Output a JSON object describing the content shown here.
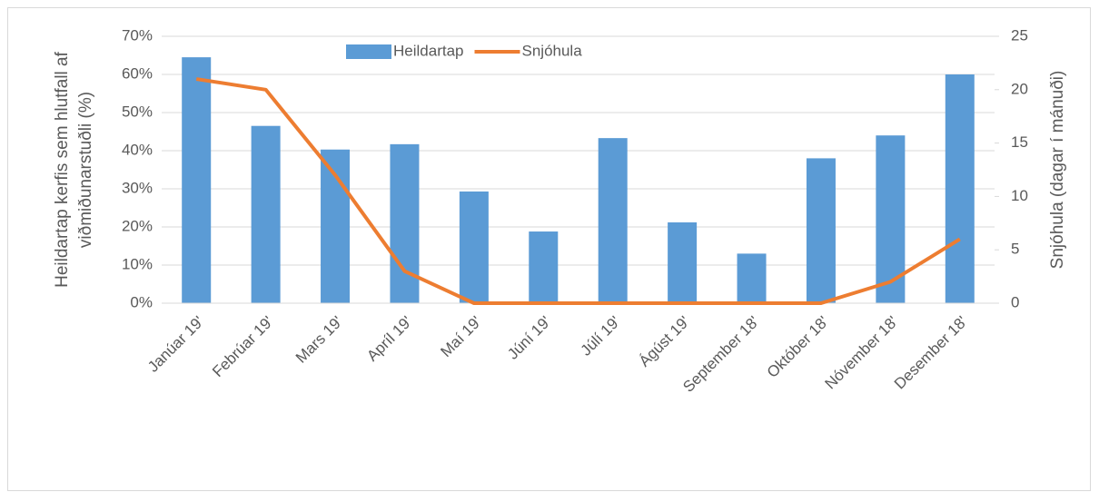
{
  "chart_data": {
    "type": "bar",
    "categories": [
      "Janúar 19'",
      "Febrúar 19'",
      "Mars 19'",
      "Apríl 19'",
      "Maí 19'",
      "Júní 19'",
      "Júlí 19'",
      "Ágúst 19'",
      "September 18'",
      "Október 18'",
      "Nóvember 18'",
      "Desember 18'"
    ],
    "series": [
      {
        "name": "Heildartap",
        "type": "bar",
        "color": "#5b9bd5",
        "values": [
          64.5,
          46.5,
          40.3,
          41.7,
          29.3,
          18.8,
          43.3,
          21.2,
          13,
          38,
          44,
          60
        ]
      },
      {
        "name": "Snjóhula",
        "type": "line",
        "axis": "y2",
        "color": "#ed7d31",
        "values": [
          21,
          20,
          12,
          3,
          0,
          0,
          0,
          0,
          0,
          0,
          2,
          6
        ]
      }
    ],
    "ylabel": [
      "Heildartap kerfis sem hlutfall af",
      "viðmiðunarstuðli (%)"
    ],
    "y2label": "Snjóhula (dagar í mánuði)",
    "ylim": [
      0,
      70
    ],
    "yticks": [
      {
        "value": 0,
        "label": "0%"
      },
      {
        "value": 10,
        "label": "10%"
      },
      {
        "value": 20,
        "label": "20%"
      },
      {
        "value": 30,
        "label": "30%"
      },
      {
        "value": 40,
        "label": "40%"
      },
      {
        "value": 50,
        "label": "50%"
      },
      {
        "value": 60,
        "label": "60%"
      },
      {
        "value": 70,
        "label": "70%"
      }
    ],
    "y2lim": [
      0,
      25
    ],
    "y2ticks": [
      0,
      5,
      10,
      15,
      20,
      25
    ],
    "grid": true,
    "legend": "top"
  }
}
